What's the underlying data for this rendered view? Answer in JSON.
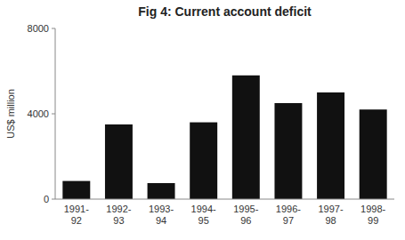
{
  "chart_data": {
    "type": "bar",
    "title": "Fig 4: Current account deficit",
    "ylabel": "US$ million",
    "categories": [
      "1991-\n92",
      "1992-\n93",
      "1993-\n94",
      "1994-\n95",
      "1995-\n96",
      "1996-\n97",
      "1997-\n98",
      "1998-\n99"
    ],
    "values": [
      850,
      3500,
      750,
      3600,
      5800,
      4500,
      5000,
      4200
    ],
    "color": "#111111",
    "ylim": [
      0,
      8000
    ],
    "yticks": [
      0,
      4000,
      8000
    ],
    "grid": false
  }
}
